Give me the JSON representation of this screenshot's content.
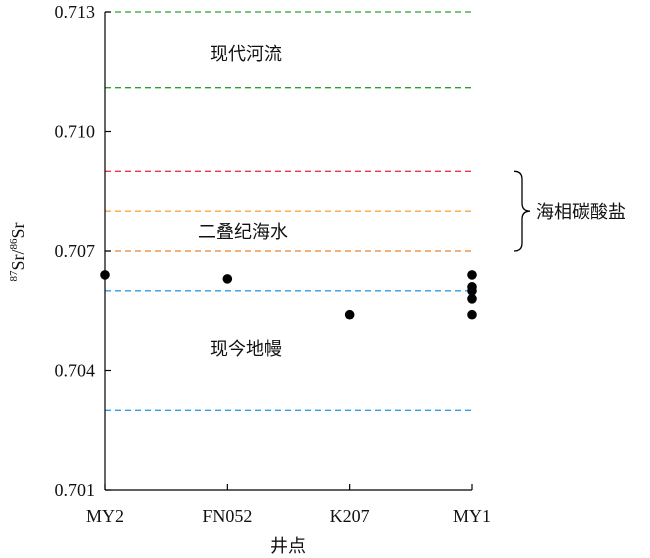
{
  "chart_data": {
    "type": "scatter",
    "xlabel": "井点",
    "ylabel_html": {
      "sup1": "87",
      "base1": "Sr/",
      "sup2": "86",
      "base2": "Sr"
    },
    "categories": [
      "MY2",
      "FN052",
      "K207",
      "MY1"
    ],
    "ylim": [
      0.701,
      0.713
    ],
    "y_ticks": [
      {
        "value": 0.701,
        "label": "0.701"
      },
      {
        "value": 0.704,
        "label": "0.704"
      },
      {
        "value": 0.707,
        "label": "0.707"
      },
      {
        "value": 0.71,
        "label": "0.710"
      },
      {
        "value": 0.713,
        "label": "0.713"
      }
    ],
    "points": [
      {
        "x": "MY2",
        "y": 0.7064
      },
      {
        "x": "FN052",
        "y": 0.7063
      },
      {
        "x": "K207",
        "y": 0.7054
      },
      {
        "x": "MY1",
        "y": 0.7064
      },
      {
        "x": "MY1",
        "y": 0.7061
      },
      {
        "x": "MY1",
        "y": 0.706
      },
      {
        "x": "MY1",
        "y": 0.7058
      },
      {
        "x": "MY1",
        "y": 0.7054
      }
    ],
    "reference_lines": [
      {
        "y": 0.713,
        "color": "#2ca02c"
      },
      {
        "y": 0.7111,
        "color": "#2ca02c"
      },
      {
        "y": 0.709,
        "color": "#e8384f"
      },
      {
        "y": 0.708,
        "color": "#f5a742"
      },
      {
        "y": 0.707,
        "color": "#e8832a"
      },
      {
        "y": 0.706,
        "color": "#2f9fe0"
      },
      {
        "y": 0.703,
        "color": "#2f9fe0"
      }
    ],
    "annotations": [
      {
        "text": "现代河流"
      },
      {
        "text": "二叠纪海水"
      },
      {
        "text": "现今地幔"
      },
      {
        "text": "海相碳酸盐"
      }
    ],
    "bracket_range": [
      0.707,
      0.709
    ]
  }
}
